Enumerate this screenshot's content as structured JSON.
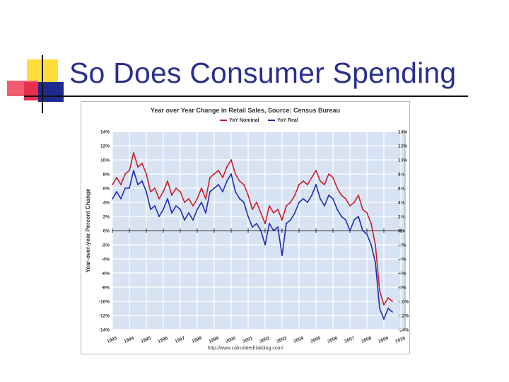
{
  "slide": {
    "title": "So Does Consumer Spending"
  },
  "colors": {
    "title": "#2a2f8c",
    "nominal": "#cc1d2a",
    "real": "#1c2bb8",
    "plot_bg": "#d7e3f3",
    "grid": "#ffffff"
  },
  "chart_data": {
    "type": "line",
    "title": "Year over Year Change in Retail Sales, Source: Census Bureau",
    "ylabel": "Year-over-year Percent Change",
    "xlabel": "",
    "source": "http://www.calculatedriskblog.com/",
    "ylim": [
      -14,
      14
    ],
    "xlim": [
      1993,
      2010
    ],
    "yticks": [
      14,
      12,
      10,
      8,
      6,
      4,
      2,
      0,
      -2,
      -4,
      -6,
      -8,
      -10,
      -12,
      -14
    ],
    "ytick_labels": [
      "14%",
      "12%",
      "10%",
      "8%",
      "6%",
      "4%",
      "2%",
      "0%",
      "-2%",
      "-4%",
      "-6%",
      "-8%",
      "-10%",
      "-12%",
      "-14%"
    ],
    "xticks": [
      1993,
      1994,
      1995,
      1996,
      1997,
      1998,
      1999,
      2000,
      2001,
      2002,
      2003,
      2004,
      2005,
      2006,
      2007,
      2008,
      2009,
      2010
    ],
    "xtick_labels": [
      "1993",
      "1994",
      "1995",
      "1996",
      "1997",
      "1998",
      "1999",
      "2000",
      "2001",
      "2002",
      "2003",
      "2004",
      "2005",
      "2006",
      "2007",
      "2008",
      "2009",
      "2010"
    ],
    "grid": true,
    "legend": "top-center",
    "series": [
      {
        "name": "YoY Nominal",
        "x": [
          1993.0,
          1993.25,
          1993.5,
          1993.75,
          1994.0,
          1994.25,
          1994.5,
          1994.75,
          1995.0,
          1995.25,
          1995.5,
          1995.75,
          1996.0,
          1996.25,
          1996.5,
          1996.75,
          1997.0,
          1997.25,
          1997.5,
          1997.75,
          1998.0,
          1998.25,
          1998.5,
          1998.75,
          1999.0,
          1999.25,
          1999.5,
          1999.75,
          2000.0,
          2000.25,
          2000.5,
          2000.75,
          2001.0,
          2001.25,
          2001.5,
          2001.75,
          2002.0,
          2002.25,
          2002.5,
          2002.75,
          2003.0,
          2003.25,
          2003.5,
          2003.75,
          2004.0,
          2004.25,
          2004.5,
          2004.75,
          2005.0,
          2005.25,
          2005.5,
          2005.75,
          2006.0,
          2006.25,
          2006.5,
          2006.75,
          2007.0,
          2007.25,
          2007.5,
          2007.75,
          2008.0,
          2008.25,
          2008.5,
          2008.75,
          2009.0,
          2009.25,
          2009.5
        ],
        "values": [
          6.5,
          7.5,
          6.5,
          8.0,
          8.5,
          11.0,
          9.0,
          9.5,
          8.0,
          5.5,
          6.0,
          4.5,
          5.5,
          7.0,
          5.0,
          6.0,
          5.5,
          4.0,
          4.5,
          3.5,
          4.5,
          6.0,
          4.5,
          7.5,
          8.0,
          8.5,
          7.5,
          9.0,
          10.0,
          8.0,
          7.0,
          6.5,
          5.0,
          3.0,
          4.0,
          2.5,
          1.0,
          3.5,
          2.5,
          3.0,
          1.5,
          3.5,
          4.0,
          5.0,
          6.5,
          7.0,
          6.5,
          7.5,
          8.5,
          7.0,
          6.5,
          8.0,
          7.5,
          6.0,
          5.0,
          4.5,
          3.5,
          4.0,
          5.0,
          3.0,
          2.5,
          1.0,
          -2.0,
          -8.5,
          -10.5,
          -9.5,
          -10.0
        ]
      },
      {
        "name": "YoY Real",
        "x": [
          1993.0,
          1993.25,
          1993.5,
          1993.75,
          1994.0,
          1994.25,
          1994.5,
          1994.75,
          1995.0,
          1995.25,
          1995.5,
          1995.75,
          1996.0,
          1996.25,
          1996.5,
          1996.75,
          1997.0,
          1997.25,
          1997.5,
          1997.75,
          1998.0,
          1998.25,
          1998.5,
          1998.75,
          1999.0,
          1999.25,
          1999.5,
          1999.75,
          2000.0,
          2000.25,
          2000.5,
          2000.75,
          2001.0,
          2001.25,
          2001.5,
          2001.75,
          2002.0,
          2002.25,
          2002.5,
          2002.75,
          2003.0,
          2003.25,
          2003.5,
          2003.75,
          2004.0,
          2004.25,
          2004.5,
          2004.75,
          2005.0,
          2005.25,
          2005.5,
          2005.75,
          2006.0,
          2006.25,
          2006.5,
          2006.75,
          2007.0,
          2007.25,
          2007.5,
          2007.75,
          2008.0,
          2008.25,
          2008.5,
          2008.75,
          2009.0,
          2009.25,
          2009.5
        ],
        "values": [
          4.5,
          5.5,
          4.5,
          6.0,
          6.0,
          8.5,
          6.5,
          7.0,
          5.5,
          3.0,
          3.5,
          2.0,
          3.0,
          4.5,
          2.5,
          3.5,
          3.0,
          1.5,
          2.5,
          1.5,
          3.0,
          4.0,
          2.5,
          5.5,
          6.0,
          6.5,
          5.5,
          7.0,
          8.0,
          5.5,
          4.5,
          4.0,
          2.0,
          0.5,
          1.0,
          0.0,
          -2.0,
          1.0,
          0.0,
          0.5,
          -3.5,
          1.0,
          1.5,
          2.5,
          4.0,
          4.5,
          4.0,
          5.0,
          6.5,
          4.5,
          3.5,
          5.0,
          4.5,
          3.0,
          2.0,
          1.5,
          0.0,
          1.5,
          2.0,
          0.0,
          -0.5,
          -2.0,
          -4.5,
          -11.0,
          -12.5,
          -11.0,
          -11.5
        ]
      }
    ]
  }
}
